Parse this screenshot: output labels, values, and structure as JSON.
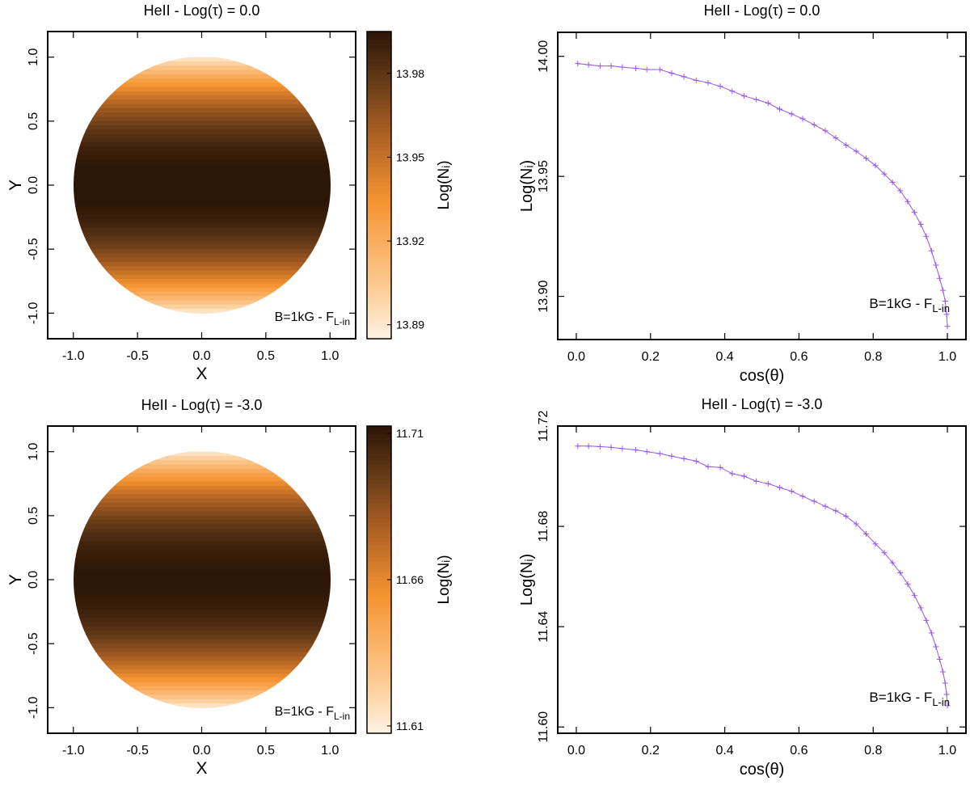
{
  "colors": {
    "line": "#9457eb",
    "frame": "#000000",
    "background": "#ffffff"
  },
  "chart_data": [
    {
      "type": "heatmap",
      "title": "HeII - Log(τ) = 0.0",
      "xlabel": "X",
      "ylabel": "Y",
      "xlim": [
        -1.2,
        1.2
      ],
      "ylim": [
        -1.2,
        1.2
      ],
      "xticks": [
        "-1.0",
        "-0.5",
        "0.0",
        "0.5",
        "1.0"
      ],
      "yticks": [
        "-1.0",
        "-0.5",
        "0.0",
        "0.5",
        "1.0"
      ],
      "colorbar_label": "Log(Nᵢ)",
      "colorbar_range": [
        13.885,
        13.995
      ],
      "colorbar_ticks": [
        "13.89",
        "13.92",
        "13.95",
        "13.98"
      ],
      "annotation": {
        "text": "B=1kG - F",
        "sub": "L-in"
      },
      "value_center": 13.996,
      "value_limb": 13.889
    },
    {
      "type": "line",
      "title": "HeII - Log(τ) = 0.0",
      "xlabel": "cos(θ)",
      "ylabel": "Log(Nᵢ)",
      "xlim": [
        -0.05,
        1.05
      ],
      "ylim": [
        13.882,
        14.01
      ],
      "xticks": [
        "0.0",
        "0.2",
        "0.4",
        "0.6",
        "0.8",
        "1.0"
      ],
      "yticks": [
        "13.90",
        "13.95",
        "14.00"
      ],
      "annotation": {
        "text": "B=1kG - F",
        "sub": "L-in"
      },
      "x": [
        0.004,
        0.033,
        0.064,
        0.094,
        0.124,
        0.16,
        0.19,
        0.225,
        0.257,
        0.29,
        0.323,
        0.355,
        0.388,
        0.42,
        0.452,
        0.485,
        0.517,
        0.548,
        0.58,
        0.61,
        0.641,
        0.671,
        0.699,
        0.727,
        0.754,
        0.781,
        0.806,
        0.83,
        0.852,
        0.873,
        0.893,
        0.911,
        0.928,
        0.943,
        0.957,
        0.969,
        0.979,
        0.988,
        0.994,
        0.998,
        1.0
      ],
      "y": [
        13.997,
        13.9965,
        13.996,
        13.996,
        13.9955,
        13.995,
        13.9945,
        13.9945,
        13.993,
        13.9915,
        13.99,
        13.989,
        13.9875,
        13.9855,
        13.9835,
        13.982,
        13.9805,
        13.978,
        13.976,
        13.974,
        13.9715,
        13.969,
        13.966,
        13.963,
        13.9605,
        13.9575,
        13.9545,
        13.951,
        13.9475,
        13.944,
        13.9395,
        13.935,
        13.93,
        13.925,
        13.919,
        13.913,
        13.9075,
        13.9025,
        13.898,
        13.8925,
        13.8875
      ]
    },
    {
      "type": "heatmap",
      "title": "HeII - Log(τ) = -3.0",
      "xlabel": "X",
      "ylabel": "Y",
      "xlim": [
        -1.2,
        1.2
      ],
      "ylim": [
        -1.2,
        1.2
      ],
      "xticks": [
        "-1.0",
        "-0.5",
        "0.0",
        "0.5",
        "1.0"
      ],
      "yticks": [
        "-1.0",
        "-0.5",
        "0.0",
        "0.5",
        "1.0"
      ],
      "colorbar_label": "Log(Nᵢ)",
      "colorbar_range": [
        11.6075,
        11.7125
      ],
      "colorbar_ticks": [
        "11.61",
        "11.66",
        "11.71"
      ],
      "annotation": {
        "text": "B=1kG - F",
        "sub": "L-in"
      },
      "value_center": 11.712,
      "value_limb": 11.612
    },
    {
      "type": "line",
      "title": "HeII - Log(τ) = -3.0",
      "xlabel": "cos(θ)",
      "ylabel": "Log(Nᵢ)",
      "xlim": [
        -0.05,
        1.05
      ],
      "ylim": [
        11.5975,
        11.72
      ],
      "xticks": [
        "0.0",
        "0.2",
        "0.4",
        "0.6",
        "0.8",
        "1.0"
      ],
      "yticks": [
        "11.60",
        "11.64",
        "11.68",
        "11.72"
      ],
      "annotation": {
        "text": "B=1kG - F",
        "sub": "L-in"
      },
      "x": [
        0.004,
        0.033,
        0.064,
        0.094,
        0.124,
        0.16,
        0.19,
        0.225,
        0.257,
        0.29,
        0.323,
        0.355,
        0.388,
        0.42,
        0.452,
        0.485,
        0.517,
        0.548,
        0.58,
        0.61,
        0.641,
        0.671,
        0.699,
        0.727,
        0.754,
        0.781,
        0.806,
        0.83,
        0.852,
        0.873,
        0.893,
        0.911,
        0.928,
        0.943,
        0.957,
        0.969,
        0.979,
        0.988,
        0.994,
        0.998,
        1.0
      ],
      "y": [
        11.712,
        11.712,
        11.7118,
        11.7115,
        11.711,
        11.7105,
        11.7098,
        11.709,
        11.708,
        11.707,
        11.706,
        11.7038,
        11.7035,
        11.701,
        11.7,
        11.698,
        11.697,
        11.6955,
        11.694,
        11.692,
        11.69,
        11.688,
        11.6862,
        11.684,
        11.681,
        11.677,
        11.673,
        11.6695,
        11.6655,
        11.6615,
        11.657,
        11.6525,
        11.6475,
        11.6425,
        11.6375,
        11.632,
        11.627,
        11.622,
        11.6175,
        11.613,
        11.6085
      ]
    }
  ]
}
